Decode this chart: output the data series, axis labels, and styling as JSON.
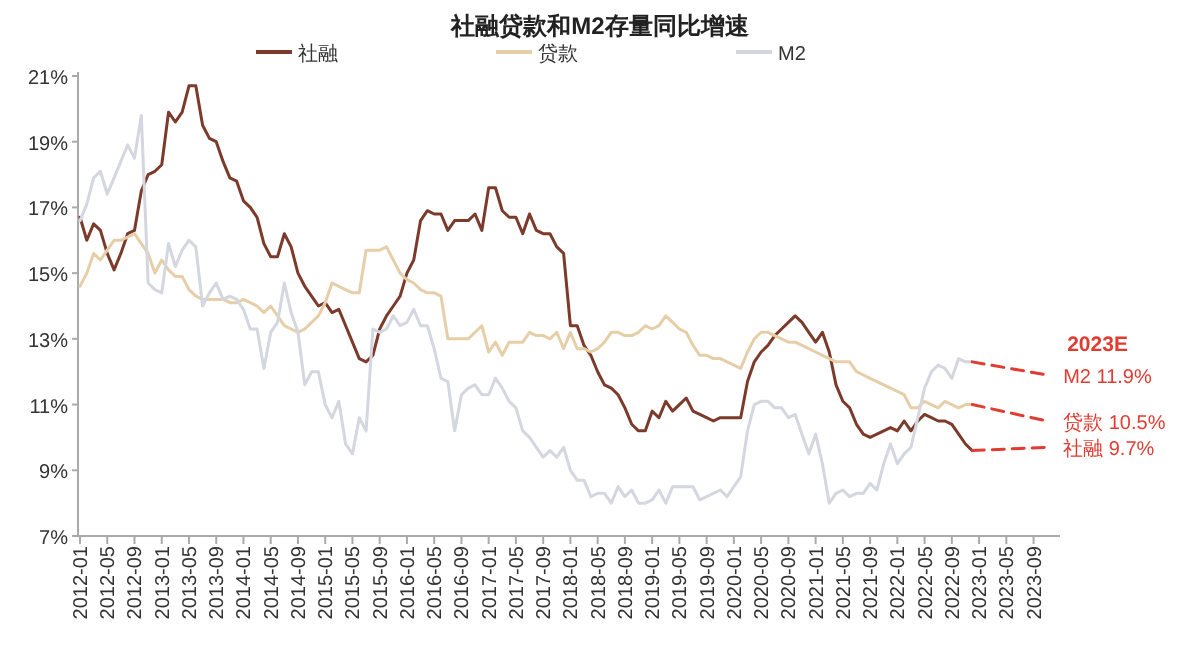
{
  "chart_data": {
    "type": "line",
    "title": "社融贷款和M2存量同比增速",
    "x": [
      "2012-01",
      "2012-02",
      "2012-03",
      "2012-04",
      "2012-05",
      "2012-06",
      "2012-07",
      "2012-08",
      "2012-09",
      "2012-10",
      "2012-11",
      "2012-12",
      "2013-01",
      "2013-02",
      "2013-03",
      "2013-04",
      "2013-05",
      "2013-06",
      "2013-07",
      "2013-08",
      "2013-09",
      "2013-10",
      "2013-11",
      "2013-12",
      "2014-01",
      "2014-02",
      "2014-03",
      "2014-04",
      "2014-05",
      "2014-06",
      "2014-07",
      "2014-08",
      "2014-09",
      "2014-10",
      "2014-11",
      "2014-12",
      "2015-01",
      "2015-02",
      "2015-03",
      "2015-04",
      "2015-05",
      "2015-06",
      "2015-07",
      "2015-08",
      "2015-09",
      "2015-10",
      "2015-11",
      "2015-12",
      "2016-01",
      "2016-02",
      "2016-03",
      "2016-04",
      "2016-05",
      "2016-06",
      "2016-07",
      "2016-08",
      "2016-09",
      "2016-10",
      "2016-11",
      "2016-12",
      "2017-01",
      "2017-02",
      "2017-03",
      "2017-04",
      "2017-05",
      "2017-06",
      "2017-07",
      "2017-08",
      "2017-09",
      "2017-10",
      "2017-11",
      "2017-12",
      "2018-01",
      "2018-02",
      "2018-03",
      "2018-04",
      "2018-05",
      "2018-06",
      "2018-07",
      "2018-08",
      "2018-09",
      "2018-10",
      "2018-11",
      "2018-12",
      "2019-01",
      "2019-02",
      "2019-03",
      "2019-04",
      "2019-05",
      "2019-06",
      "2019-07",
      "2019-08",
      "2019-09",
      "2019-10",
      "2019-11",
      "2019-12",
      "2020-01",
      "2020-02",
      "2020-03",
      "2020-04",
      "2020-05",
      "2020-06",
      "2020-07",
      "2020-08",
      "2020-09",
      "2020-10",
      "2020-11",
      "2020-12",
      "2021-01",
      "2021-02",
      "2021-03",
      "2021-04",
      "2021-05",
      "2021-06",
      "2021-07",
      "2021-08",
      "2021-09",
      "2021-10",
      "2021-11",
      "2021-12",
      "2022-01",
      "2022-02",
      "2022-03",
      "2022-04",
      "2022-05",
      "2022-06",
      "2022-07",
      "2022-08",
      "2022-09",
      "2022-10",
      "2022-11",
      "2022-12"
    ],
    "series": [
      {
        "name": "社融",
        "color": "#7b3a2a",
        "values": [
          16.7,
          16.0,
          16.5,
          16.3,
          15.6,
          15.1,
          15.6,
          16.2,
          16.3,
          17.5,
          18.0,
          18.1,
          18.3,
          19.9,
          19.6,
          19.9,
          20.7,
          20.7,
          19.5,
          19.1,
          19.0,
          18.4,
          17.9,
          17.8,
          17.2,
          17.0,
          16.7,
          15.9,
          15.5,
          15.5,
          16.2,
          15.8,
          15.0,
          14.6,
          14.3,
          14.0,
          14.1,
          13.8,
          13.9,
          13.4,
          12.9,
          12.4,
          12.3,
          12.5,
          13.3,
          13.7,
          14.0,
          14.3,
          15.0,
          15.4,
          16.6,
          16.9,
          16.8,
          16.8,
          16.3,
          16.6,
          16.6,
          16.6,
          16.8,
          16.3,
          17.6,
          17.6,
          16.9,
          16.7,
          16.7,
          16.2,
          16.8,
          16.3,
          16.2,
          16.2,
          15.8,
          15.6,
          13.4,
          13.4,
          12.8,
          12.5,
          12.0,
          11.6,
          11.5,
          11.3,
          10.9,
          10.4,
          10.2,
          10.2,
          10.8,
          10.6,
          11.1,
          10.8,
          11.0,
          11.2,
          10.8,
          10.7,
          10.6,
          10.5,
          10.6,
          10.6,
          10.6,
          10.6,
          11.7,
          12.3,
          12.6,
          12.8,
          13.1,
          13.3,
          13.5,
          13.7,
          13.5,
          13.2,
          12.9,
          13.2,
          12.6,
          11.6,
          11.1,
          10.9,
          10.4,
          10.1,
          10.0,
          10.1,
          10.2,
          10.3,
          10.2,
          10.5,
          10.2,
          10.5,
          10.7,
          10.6,
          10.5,
          10.5,
          10.4,
          10.1,
          9.8,
          9.6
        ]
      },
      {
        "name": "贷款",
        "color": "#e6cfa8",
        "values": [
          14.6,
          15.0,
          15.6,
          15.4,
          15.7,
          16.0,
          16.0,
          16.1,
          16.2,
          15.9,
          15.6,
          15.0,
          15.4,
          15.1,
          14.9,
          14.9,
          14.5,
          14.3,
          14.2,
          14.2,
          14.2,
          14.2,
          14.1,
          14.1,
          14.2,
          14.1,
          14.0,
          13.8,
          14.0,
          13.7,
          13.4,
          13.3,
          13.2,
          13.3,
          13.5,
          13.7,
          14.1,
          14.7,
          14.6,
          14.5,
          14.4,
          14.4,
          15.7,
          15.7,
          15.7,
          15.8,
          15.4,
          15.0,
          14.8,
          14.7,
          14.5,
          14.4,
          14.4,
          14.3,
          13.0,
          13.0,
          13.0,
          13.0,
          13.2,
          13.4,
          12.6,
          12.9,
          12.5,
          12.9,
          12.9,
          12.9,
          13.2,
          13.1,
          13.1,
          13.0,
          13.2,
          12.7,
          13.2,
          12.7,
          12.7,
          12.6,
          12.7,
          12.9,
          13.2,
          13.2,
          13.1,
          13.1,
          13.2,
          13.4,
          13.3,
          13.4,
          13.7,
          13.5,
          13.3,
          13.2,
          12.8,
          12.5,
          12.5,
          12.4,
          12.4,
          12.3,
          12.2,
          12.1,
          12.6,
          13.0,
          13.2,
          13.2,
          13.1,
          13.0,
          12.9,
          12.9,
          12.8,
          12.7,
          12.6,
          12.5,
          12.4,
          12.3,
          12.3,
          12.3,
          12.0,
          11.9,
          11.8,
          11.7,
          11.6,
          11.5,
          11.4,
          11.3,
          10.9,
          10.9,
          11.1,
          11.0,
          10.9,
          11.1,
          11.0,
          10.9,
          11.0,
          11.0
        ]
      },
      {
        "name": "M2",
        "color": "#d4d6e0",
        "values": [
          16.6,
          17.1,
          17.9,
          18.1,
          17.4,
          17.9,
          18.4,
          18.9,
          18.5,
          19.8,
          14.7,
          14.5,
          14.4,
          15.9,
          15.2,
          15.7,
          16.0,
          15.8,
          14.0,
          14.4,
          14.7,
          14.2,
          14.3,
          14.2,
          13.9,
          13.3,
          13.3,
          12.1,
          13.2,
          13.5,
          14.7,
          13.8,
          13.2,
          11.6,
          12.0,
          12.0,
          11.0,
          10.6,
          11.1,
          9.8,
          9.5,
          10.6,
          10.2,
          13.3,
          13.2,
          13.3,
          13.7,
          13.4,
          13.5,
          13.9,
          13.4,
          13.4,
          12.7,
          11.8,
          11.7,
          10.2,
          11.3,
          11.5,
          11.6,
          11.3,
          11.3,
          11.8,
          11.5,
          11.1,
          10.9,
          10.2,
          10.0,
          9.7,
          9.4,
          9.6,
          9.4,
          9.7,
          9.0,
          8.7,
          8.7,
          8.2,
          8.3,
          8.3,
          8.0,
          8.5,
          8.2,
          8.4,
          8.0,
          8.0,
          8.1,
          8.4,
          8.0,
          8.5,
          8.5,
          8.5,
          8.5,
          8.1,
          8.2,
          8.3,
          8.4,
          8.2,
          8.5,
          8.8,
          10.2,
          11.0,
          11.1,
          11.1,
          10.9,
          10.9,
          10.6,
          10.7,
          10.1,
          9.5,
          10.1,
          9.2,
          8.0,
          8.3,
          8.4,
          8.2,
          8.3,
          8.3,
          8.6,
          8.4,
          9.2,
          9.8,
          9.2,
          9.5,
          9.7,
          10.6,
          11.5,
          12.0,
          12.2,
          12.1,
          11.8,
          12.4,
          12.3,
          12.3
        ]
      },
      {
        "color": "#e03c31",
        "line_style": "dashed",
        "x": [
          "2022-12",
          "2023-11"
        ],
        "values": [
          12.3,
          11.9
        ]
      },
      {
        "color": "#e03c31",
        "line_style": "dashed",
        "x": [
          "2022-12",
          "2023-11"
        ],
        "values": [
          11.0,
          10.5
        ]
      },
      {
        "color": "#e03c31",
        "line_style": "dashed",
        "x": [
          "2022-12",
          "2023-11"
        ],
        "values": [
          9.6,
          9.7
        ]
      }
    ],
    "annotations": [
      "2023E",
      {
        "text": "M2  11.9%",
        "x": "2023-11",
        "y": 11.9
      },
      {
        "text": "贷款  10.5%",
        "x": "2023-11",
        "y": 10.5
      },
      {
        "text": "社融  9.7%",
        "x": "2023-11",
        "y": 9.7
      }
    ],
    "xlim": [
      "2012-01",
      "2023-12"
    ],
    "xticks": [
      "2012-01",
      "2012-05",
      "2012-09",
      "2013-01",
      "2013-05",
      "2013-09",
      "2014-01",
      "2014-05",
      "2014-09",
      "2015-01",
      "2015-05",
      "2015-09",
      "2016-01",
      "2016-05",
      "2016-09",
      "2017-01",
      "2017-05",
      "2017-09",
      "2018-01",
      "2018-05",
      "2018-09",
      "2019-01",
      "2019-05",
      "2019-09",
      "2020-01",
      "2020-05",
      "2020-09",
      "2021-01",
      "2021-05",
      "2021-09",
      "2022-01",
      "2022-05",
      "2022-09",
      "2023-01",
      "2023-05",
      "2023-09"
    ],
    "ylim": [
      7,
      21
    ],
    "yticks": [
      {
        "value": 7,
        "label": "7%"
      },
      {
        "value": 9,
        "label": "9%"
      },
      {
        "value": 11,
        "label": "11%"
      },
      {
        "value": 13,
        "label": "13%"
      },
      {
        "value": 15,
        "label": "15%"
      },
      {
        "value": 17,
        "label": "17%"
      },
      {
        "value": 19,
        "label": "19%"
      },
      {
        "value": 21,
        "label": "21%"
      }
    ],
    "grid": false,
    "legend": "top",
    "line_style": "solid",
    "marker": "none"
  }
}
